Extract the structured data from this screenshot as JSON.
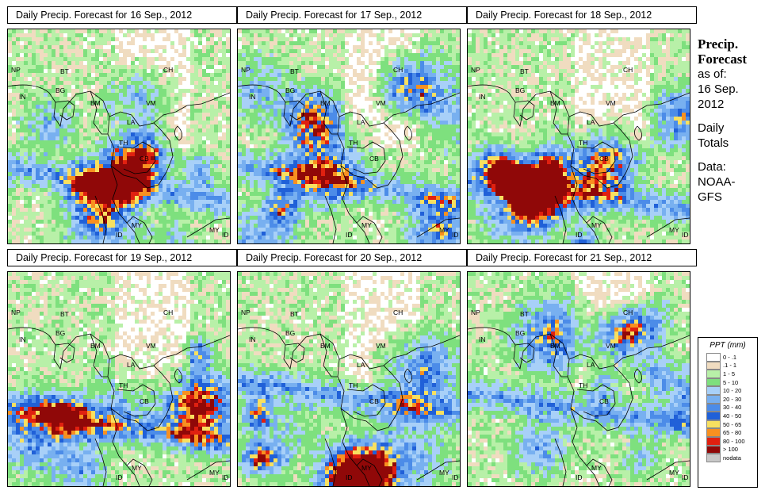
{
  "panels": [
    {
      "title_prefix": "Daily Precip. Forecast for",
      "date": "16 Sep., 2012",
      "seed": 11
    },
    {
      "title_prefix": "Daily Precip. Forecast for",
      "date": "17 Sep., 2012",
      "seed": 23
    },
    {
      "title_prefix": "Daily Precip. Forecast for",
      "date": "18 Sep., 2012",
      "seed": 37
    },
    {
      "title_prefix": "Daily Precip. Forecast for",
      "date": "19 Sep., 2012",
      "seed": 41
    },
    {
      "title_prefix": "Daily Precip. Forecast for",
      "date": "20 Sep., 2012",
      "seed": 53
    },
    {
      "title_prefix": "Daily Precip. Forecast for",
      "date": "21 Sep., 2012",
      "seed": 67
    }
  ],
  "country_labels": [
    "NP",
    "BT",
    "BG",
    "IN",
    "BM",
    "CH",
    "VM",
    "LA",
    "TH",
    "CB",
    "MY",
    "ID",
    "MY",
    "ID"
  ],
  "side": {
    "heading_1": "Precip.",
    "heading_2": "Forecast",
    "as_of": "as of:",
    "date_1": "16 Sep.",
    "date_2": "2012",
    "daily_1": "Daily",
    "daily_2": "Totals",
    "data_1": "Data:",
    "data_2": "NOAA-",
    "data_3": "GFS"
  },
  "legend": {
    "title": "PPT (mm)",
    "items": [
      {
        "label": "0 - .1",
        "color": "#ffffff"
      },
      {
        "label": ".1 - 1",
        "color": "#f0dcc0"
      },
      {
        "label": "1 - 5",
        "color": "#b8f0a8"
      },
      {
        "label": "5 - 10",
        "color": "#7ee07e"
      },
      {
        "label": "10 - 20",
        "color": "#a8d0f8"
      },
      {
        "label": "20 - 30",
        "color": "#78b0f0"
      },
      {
        "label": "30 - 40",
        "color": "#4c8ce8"
      },
      {
        "label": "40 - 50",
        "color": "#2060d8"
      },
      {
        "label": "50 - 65",
        "color": "#f8e060"
      },
      {
        "label": "65 - 80",
        "color": "#f89020"
      },
      {
        "label": "80 - 100",
        "color": "#e02010"
      },
      {
        "label": "> 100",
        "color": "#900808"
      },
      {
        "label": "nodata",
        "color": "#c8c8c8"
      }
    ]
  }
}
